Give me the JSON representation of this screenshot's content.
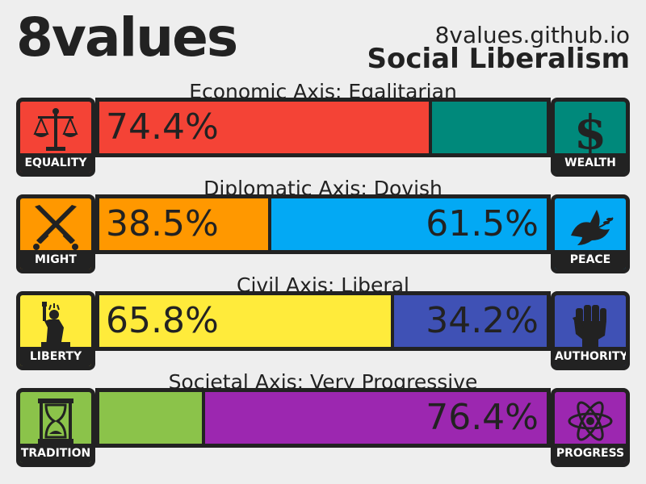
{
  "header": {
    "logo": "8values",
    "site": "8values.github.io",
    "ideology": "Social Liberalism"
  },
  "axes": [
    {
      "title": "Economic Axis: Egalitarian",
      "left": {
        "label": "EQUALITY",
        "icon": "scales-icon",
        "color": "#f44336",
        "value": 74.4,
        "value_text": "74.4%",
        "show": true
      },
      "right": {
        "label": "WEALTH",
        "icon": "dollar-icon",
        "color": "#00897b",
        "value": 25.6,
        "value_text": "",
        "show": false
      }
    },
    {
      "title": "Diplomatic Axis: Dovish",
      "left": {
        "label": "MIGHT",
        "icon": "crossed-swords-icon",
        "color": "#ff9800",
        "value": 38.5,
        "value_text": "38.5%",
        "show": true
      },
      "right": {
        "label": "PEACE",
        "icon": "dove-icon",
        "color": "#03a9f4",
        "value": 61.5,
        "value_text": "61.5%",
        "show": true
      }
    },
    {
      "title": "Civil Axis: Liberal",
      "left": {
        "label": "LIBERTY",
        "icon": "statue-of-liberty-icon",
        "color": "#ffeb3b",
        "value": 65.8,
        "value_text": "65.8%",
        "show": true
      },
      "right": {
        "label": "AUTHORITY",
        "icon": "raised-fist-icon",
        "color": "#3f51b5",
        "value": 34.2,
        "value_text": "34.2%",
        "show": true
      }
    },
    {
      "title": "Societal Axis: Very Progressive",
      "left": {
        "label": "TRADITION",
        "icon": "hourglass-icon",
        "color": "#8bc34a",
        "value": 23.6,
        "value_text": "",
        "show": false
      },
      "right": {
        "label": "PROGRESS",
        "icon": "atom-icon",
        "color": "#9c27b0",
        "value": 76.4,
        "value_text": "76.4%",
        "show": true
      }
    }
  ]
}
